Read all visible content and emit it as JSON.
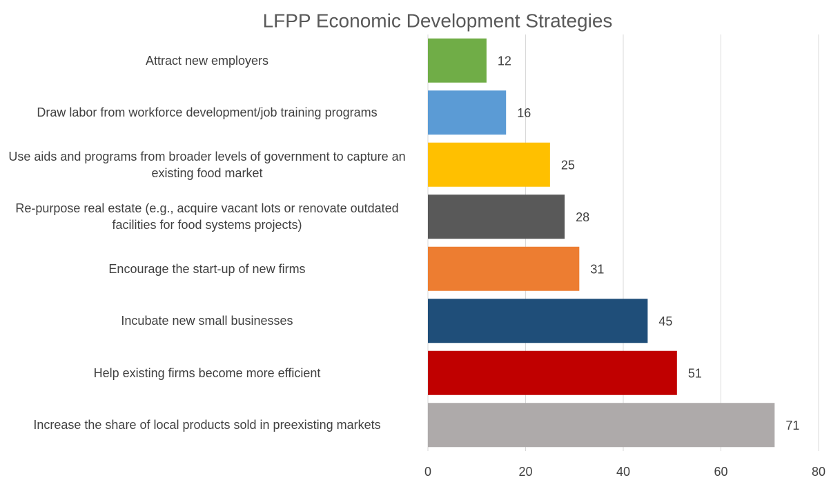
{
  "chart_data": {
    "type": "bar",
    "orientation": "horizontal",
    "title": "LFPP Economic Development Strategies",
    "categories": [
      "Attract new employers",
      "Draw labor from workforce development/job training programs",
      "Use aids and programs from broader levels of government to capture an existing food market",
      "Re-purpose real estate (e.g., acquire vacant lots or renovate outdated facilities for food systems projects)",
      "Encourage the start-up of new firms",
      "Incubate new small businesses",
      "Help existing firms become more efficient",
      "Increase the share of local products sold in preexisting markets"
    ],
    "values": [
      12,
      16,
      25,
      28,
      31,
      45,
      51,
      71
    ],
    "colors": [
      "#70ad47",
      "#5b9bd5",
      "#ffc000",
      "#595959",
      "#ed7d31",
      "#1f4e79",
      "#c00000",
      "#aeaaaa"
    ],
    "xlim": [
      0,
      80
    ],
    "xticks": [
      0,
      20,
      40,
      60,
      80
    ],
    "grid": true
  }
}
